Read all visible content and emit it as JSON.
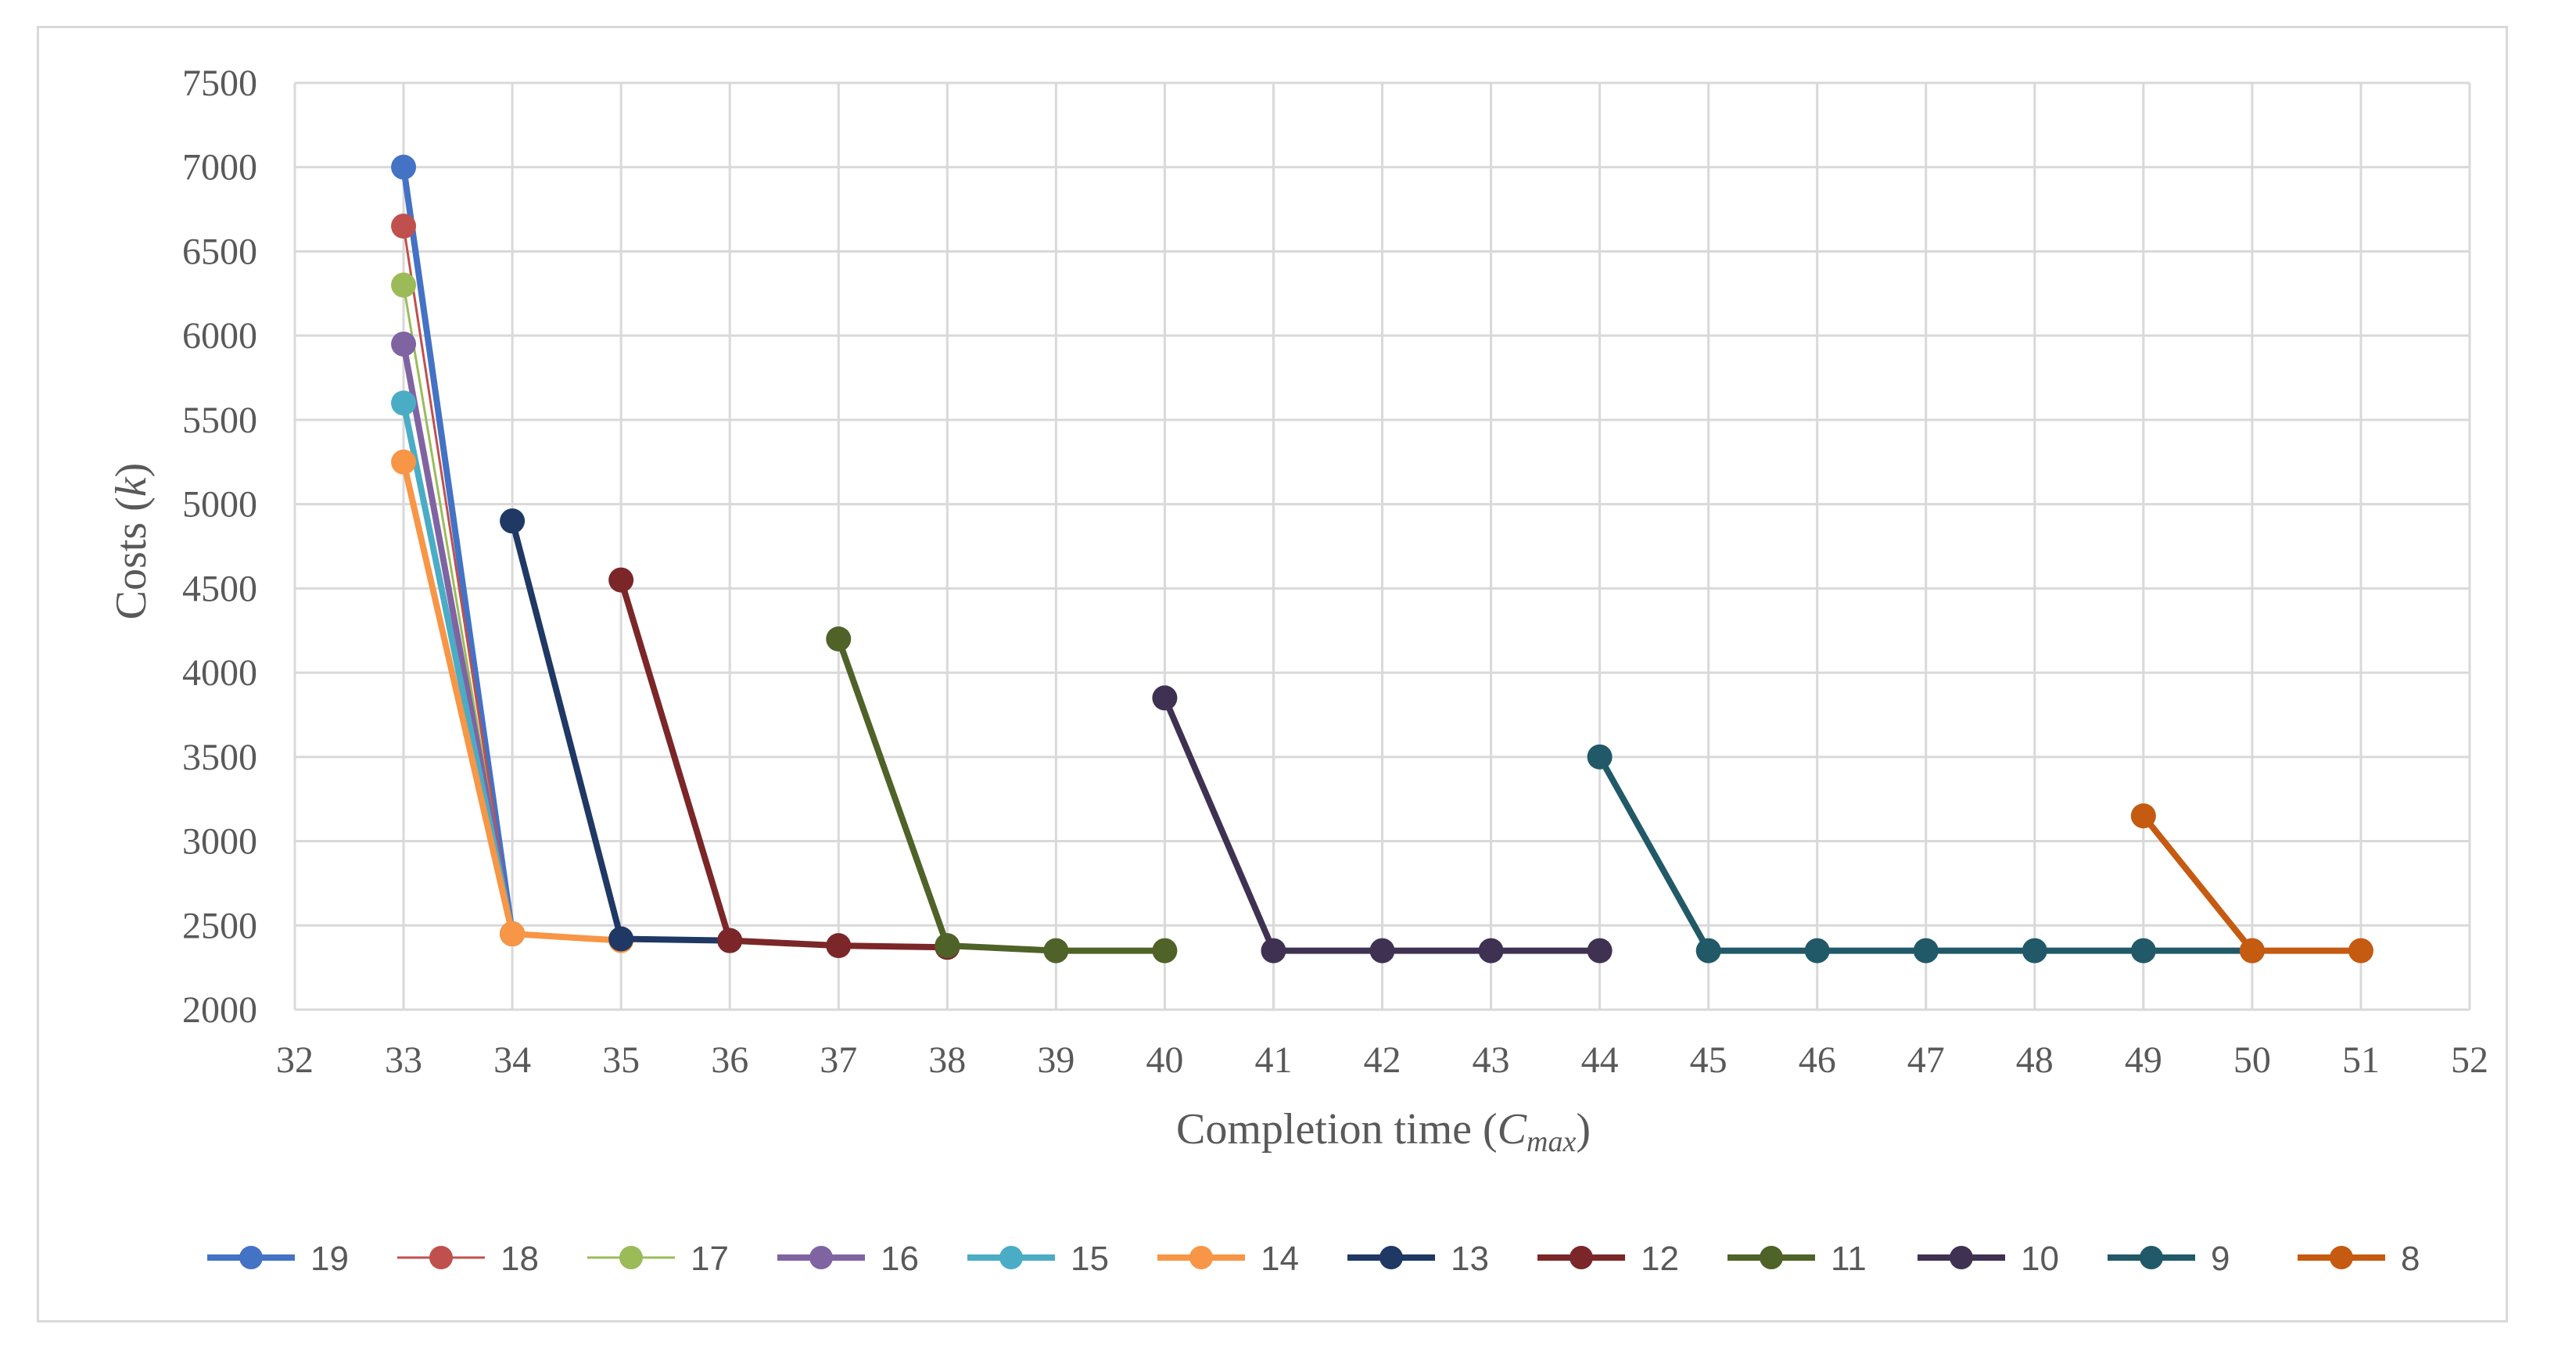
{
  "chart_data": {
    "type": "line",
    "xlabel": {
      "main": "Completion time (",
      "symbol": "C",
      "subscript": "max",
      "close": ")"
    },
    "ylabel": {
      "main": "Costs (",
      "symbol": "k",
      "close": ")"
    },
    "xlim": [
      32,
      52
    ],
    "ylim": [
      2000,
      7500
    ],
    "x_ticks": [
      32,
      33,
      34,
      35,
      36,
      37,
      38,
      39,
      40,
      41,
      42,
      43,
      44,
      45,
      46,
      47,
      48,
      49,
      50,
      51,
      52
    ],
    "y_ticks": [
      2000,
      2500,
      3000,
      3500,
      4000,
      4500,
      5000,
      5500,
      6000,
      6500,
      7000,
      7500
    ],
    "grid": true,
    "legend_position": "bottom",
    "series": [
      {
        "name": "19",
        "color": "#4472C4",
        "thin": false,
        "x": [
          33,
          34
        ],
        "y": [
          7000,
          2450
        ]
      },
      {
        "name": "18",
        "color": "#C0504D",
        "thin": true,
        "x": [
          33,
          34
        ],
        "y": [
          6650,
          2450
        ]
      },
      {
        "name": "17",
        "color": "#9BBB59",
        "thin": true,
        "x": [
          33,
          34
        ],
        "y": [
          6300,
          2450
        ]
      },
      {
        "name": "16",
        "color": "#8064A2",
        "thin": false,
        "x": [
          33,
          34
        ],
        "y": [
          5950,
          2450
        ]
      },
      {
        "name": "15",
        "color": "#4BACC6",
        "thin": false,
        "x": [
          33,
          34
        ],
        "y": [
          5600,
          2450
        ]
      },
      {
        "name": "14",
        "color": "#F79646",
        "thin": false,
        "x": [
          33,
          34,
          35
        ],
        "y": [
          5250,
          2450,
          2410
        ]
      },
      {
        "name": "13",
        "color": "#1F3864",
        "thin": false,
        "x": [
          34,
          35,
          36
        ],
        "y": [
          4900,
          2420,
          2410
        ]
      },
      {
        "name": "12",
        "color": "#7B2628",
        "thin": false,
        "x": [
          35,
          36,
          37,
          38
        ],
        "y": [
          4550,
          2410,
          2380,
          2370
        ]
      },
      {
        "name": "11",
        "color": "#4F6228",
        "thin": false,
        "x": [
          37,
          38,
          39,
          40
        ],
        "y": [
          4200,
          2380,
          2350,
          2350
        ]
      },
      {
        "name": "10",
        "color": "#3F3151",
        "thin": false,
        "x": [
          40,
          41,
          42,
          43,
          44
        ],
        "y": [
          3850,
          2350,
          2350,
          2350,
          2350
        ]
      },
      {
        "name": "9",
        "color": "#215968",
        "thin": false,
        "x": [
          44,
          45,
          46,
          47,
          48,
          49,
          50
        ],
        "y": [
          3500,
          2350,
          2350,
          2350,
          2350,
          2350,
          2350
        ]
      },
      {
        "name": "8",
        "color": "#C55A11",
        "thin": false,
        "x": [
          49,
          50,
          51
        ],
        "y": [
          3150,
          2350,
          2350
        ]
      }
    ]
  },
  "colors": {
    "grid": "#d9d9d9",
    "text": "#595959",
    "border": "#d9d9d9"
  }
}
